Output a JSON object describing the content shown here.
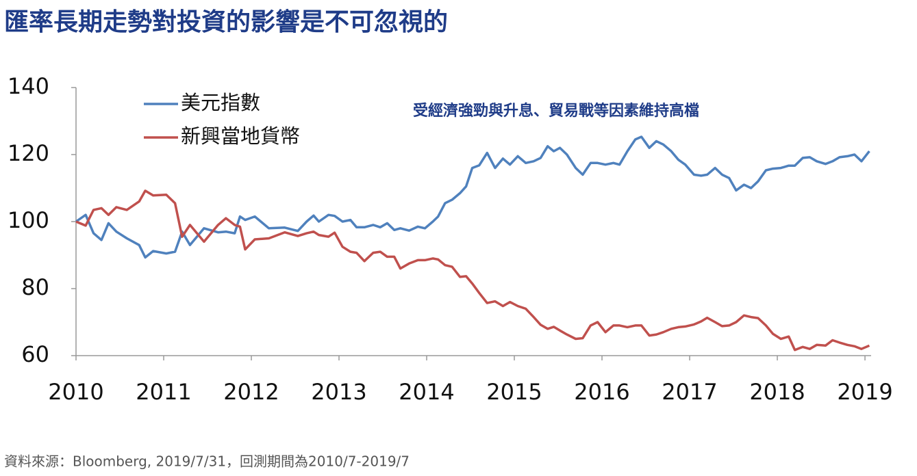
{
  "chart_data": {
    "type": "line",
    "title": "匯率長期走勢對投資的影響是不可忽視的",
    "annotation": "受經濟強勁與升息、貿易戰等因素維持高檔",
    "source": "資料來源：Bloomberg, 2019/7/31，回測期間為2010/7-2019/7",
    "legend": "upper left",
    "xlim": [
      2010,
      2019.07
    ],
    "xticks": [
      2010,
      2011,
      2012,
      2013,
      2014,
      2015,
      2016,
      2017,
      2018,
      2019
    ],
    "ylim": [
      60,
      140
    ],
    "yticks": [
      60,
      80,
      100,
      120,
      140
    ],
    "x": [
      2010.0,
      2010.11,
      2010.2,
      2010.29,
      2010.37,
      2010.46,
      2010.58,
      2010.72,
      2010.79,
      2010.88,
      2011.03,
      2011.13,
      2011.21,
      2011.3,
      2011.46,
      2011.62,
      2011.71,
      2011.81,
      2011.87,
      2011.93,
      2012.04,
      2012.2,
      2012.38,
      2012.53,
      2012.63,
      2012.71,
      2012.77,
      2012.88,
      2012.95,
      2013.04,
      2013.13,
      2013.2,
      2013.29,
      2013.39,
      2013.47,
      2013.55,
      2013.63,
      2013.7,
      2013.8,
      2013.9,
      2013.98,
      2014.07,
      2014.13,
      2014.21,
      2014.29,
      2014.38,
      2014.45,
      2014.52,
      2014.6,
      2014.69,
      2014.78,
      2014.87,
      2014.95,
      2015.04,
      2015.13,
      2015.22,
      2015.3,
      2015.38,
      2015.45,
      2015.52,
      2015.6,
      2015.7,
      2015.78,
      2015.87,
      2015.95,
      2016.04,
      2016.13,
      2016.2,
      2016.29,
      2016.38,
      2016.45,
      2016.54,
      2016.62,
      2016.7,
      2016.79,
      2016.87,
      2016.95,
      2017.05,
      2017.13,
      2017.2,
      2017.29,
      2017.37,
      2017.45,
      2017.53,
      2017.62,
      2017.7,
      2017.78,
      2017.87,
      2017.95,
      2018.04,
      2018.13,
      2018.2,
      2018.29,
      2018.37,
      2018.45,
      2018.55,
      2018.63,
      2018.71,
      2018.8,
      2018.88,
      2018.96,
      2019.05
    ],
    "series": [
      {
        "name": "美元指數",
        "color": "#4f81bd",
        "values": [
          100,
          102,
          96.5,
          94.5,
          99.5,
          97,
          95,
          93,
          89.3,
          91.2,
          90.5,
          91,
          97,
          93,
          98,
          96.8,
          97,
          96.5,
          101.5,
          100.5,
          101.5,
          98,
          98.2,
          97.2,
          100,
          101.8,
          100,
          102,
          101.7,
          100,
          100.5,
          98.3,
          98.3,
          99,
          98.3,
          99.5,
          97.5,
          98,
          97.3,
          98.5,
          98,
          100,
          101.5,
          105.5,
          106.5,
          108.5,
          110.5,
          116,
          116.8,
          120.5,
          116,
          118.8,
          117,
          119.5,
          117.5,
          118,
          119,
          122.5,
          121,
          122,
          120,
          116,
          114,
          117.5,
          117.5,
          117,
          117.5,
          117,
          121,
          124.5,
          125.3,
          122,
          124,
          123,
          121,
          118.5,
          117,
          114,
          113.7,
          114,
          116,
          114,
          113,
          109.3,
          111,
          110,
          112,
          115.3,
          115.8,
          116,
          116.7,
          116.7,
          119,
          119.2,
          118,
          117.2,
          118,
          119.2,
          119.5,
          120,
          118,
          121
        ]
      },
      {
        "name": "新興當地貨幣",
        "color": "#c0504d",
        "values": [
          100,
          98.8,
          103.5,
          104,
          102,
          104.3,
          103.5,
          106,
          109.2,
          107.8,
          108,
          105.5,
          95.5,
          99,
          94,
          99,
          101,
          99,
          98.5,
          91.7,
          94.7,
          95,
          96.8,
          95.7,
          96.5,
          97,
          96,
          95.5,
          96.7,
          92.5,
          91,
          90.7,
          88.2,
          90.7,
          91,
          89.5,
          89.5,
          86,
          87.5,
          88.5,
          88.5,
          89,
          88.7,
          87,
          86.5,
          83.5,
          83.7,
          81.5,
          78.7,
          75.7,
          76.2,
          74.8,
          76,
          74.8,
          74,
          71.5,
          69.2,
          68,
          68.6,
          67.5,
          66.3,
          65,
          65.2,
          69,
          70,
          67,
          69,
          69,
          68.5,
          69,
          69,
          66,
          66.3,
          67,
          68,
          68.5,
          68.7,
          69.3,
          70.2,
          71.3,
          70,
          68.8,
          69,
          70,
          72,
          71.5,
          71.2,
          69,
          66.5,
          65,
          65.7,
          61.7,
          62.6,
          62,
          63.2,
          63,
          64.6,
          63.9,
          63.2,
          62.8,
          62,
          63
        ]
      }
    ]
  }
}
